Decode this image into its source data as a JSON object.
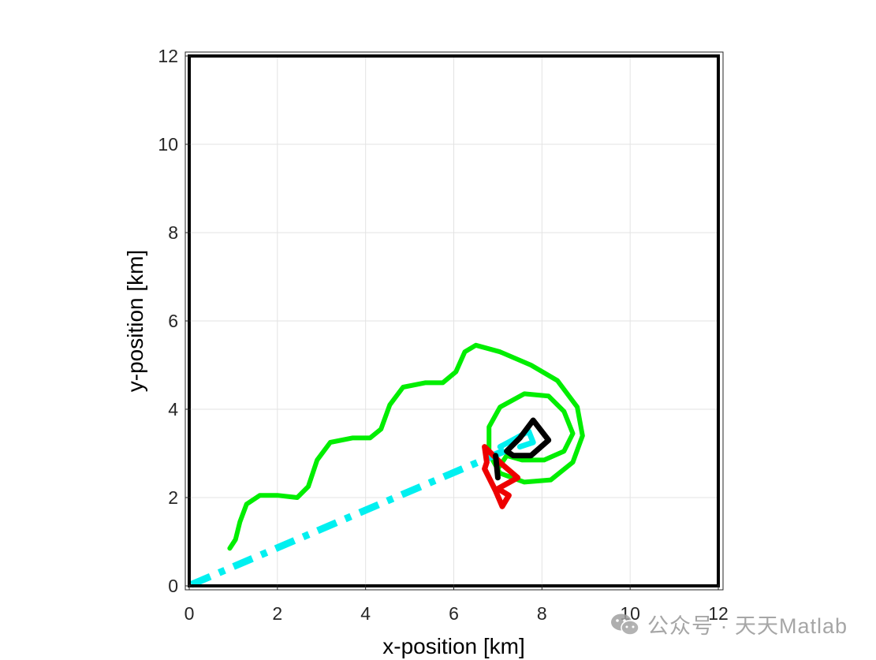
{
  "chart_data": {
    "type": "line",
    "xlabel": "x-position [km]",
    "ylabel": "y-position [km]",
    "xlim": [
      0,
      12
    ],
    "ylim": [
      0,
      12
    ],
    "xticks": [
      0,
      2,
      4,
      6,
      8,
      10,
      12
    ],
    "yticks": [
      0,
      2,
      4,
      6,
      8,
      10,
      12
    ],
    "grid": true,
    "series": [
      {
        "color": "#00ee00",
        "style": "solid",
        "points": [
          [
            0.92,
            0.85
          ],
          [
            1.05,
            1.05
          ],
          [
            1.15,
            1.45
          ],
          [
            1.3,
            1.85
          ],
          [
            1.6,
            2.05
          ],
          [
            2.0,
            2.05
          ],
          [
            2.45,
            2.0
          ],
          [
            2.7,
            2.25
          ],
          [
            2.9,
            2.85
          ],
          [
            3.2,
            3.25
          ],
          [
            3.7,
            3.35
          ],
          [
            4.1,
            3.35
          ],
          [
            4.35,
            3.55
          ],
          [
            4.55,
            4.1
          ],
          [
            4.85,
            4.5
          ],
          [
            5.35,
            4.6
          ],
          [
            5.75,
            4.6
          ],
          [
            6.05,
            4.85
          ],
          [
            6.25,
            5.3
          ],
          [
            6.5,
            5.45
          ],
          [
            7.05,
            5.3
          ],
          [
            7.75,
            5.0
          ],
          [
            8.35,
            4.65
          ],
          [
            8.8,
            4.05
          ],
          [
            8.92,
            3.4
          ],
          [
            8.7,
            2.8
          ],
          [
            8.2,
            2.4
          ],
          [
            7.6,
            2.35
          ],
          [
            7.05,
            2.55
          ],
          [
            6.8,
            3.0
          ],
          [
            6.8,
            3.6
          ],
          [
            7.05,
            4.05
          ],
          [
            7.6,
            4.35
          ],
          [
            8.15,
            4.3
          ],
          [
            8.5,
            3.95
          ],
          [
            8.7,
            3.45
          ],
          [
            8.5,
            3.05
          ],
          [
            8.05,
            2.85
          ],
          [
            7.55,
            2.85
          ],
          [
            7.2,
            2.95
          ],
          [
            7.0,
            2.65
          ]
        ]
      },
      {
        "color": "#00f0f0",
        "style": "dashdot",
        "points": [
          [
            0.05,
            0.03
          ],
          [
            7.25,
            3.1
          ]
        ]
      },
      {
        "color": "#00f0f0",
        "style": "solid",
        "points": [
          [
            7.05,
            3.15
          ],
          [
            7.7,
            3.5
          ],
          [
            7.8,
            3.25
          ],
          [
            7.5,
            3.15
          ]
        ]
      },
      {
        "color": "#000000",
        "style": "solid",
        "points": [
          [
            7.2,
            3.05
          ],
          [
            7.5,
            3.35
          ],
          [
            7.8,
            3.75
          ],
          [
            8.15,
            3.3
          ],
          [
            7.75,
            2.95
          ],
          [
            7.35,
            2.95
          ],
          [
            7.2,
            3.05
          ]
        ]
      },
      {
        "color": "#ee0000",
        "style": "solid",
        "points": [
          [
            6.75,
            2.8
          ],
          [
            6.7,
            3.15
          ],
          [
            7.1,
            2.75
          ],
          [
            7.45,
            2.45
          ],
          [
            7.0,
            2.2
          ],
          [
            7.25,
            2.05
          ],
          [
            7.1,
            1.8
          ],
          [
            6.95,
            2.15
          ],
          [
            6.7,
            2.65
          ],
          [
            6.75,
            2.8
          ]
        ]
      },
      {
        "color": "#000000",
        "style": "solid",
        "points": [
          [
            6.95,
            2.95
          ],
          [
            7.0,
            2.45
          ]
        ]
      }
    ]
  },
  "watermark": {
    "text": "公众号 · 天天Matlab",
    "icon": "wechat-icon"
  }
}
